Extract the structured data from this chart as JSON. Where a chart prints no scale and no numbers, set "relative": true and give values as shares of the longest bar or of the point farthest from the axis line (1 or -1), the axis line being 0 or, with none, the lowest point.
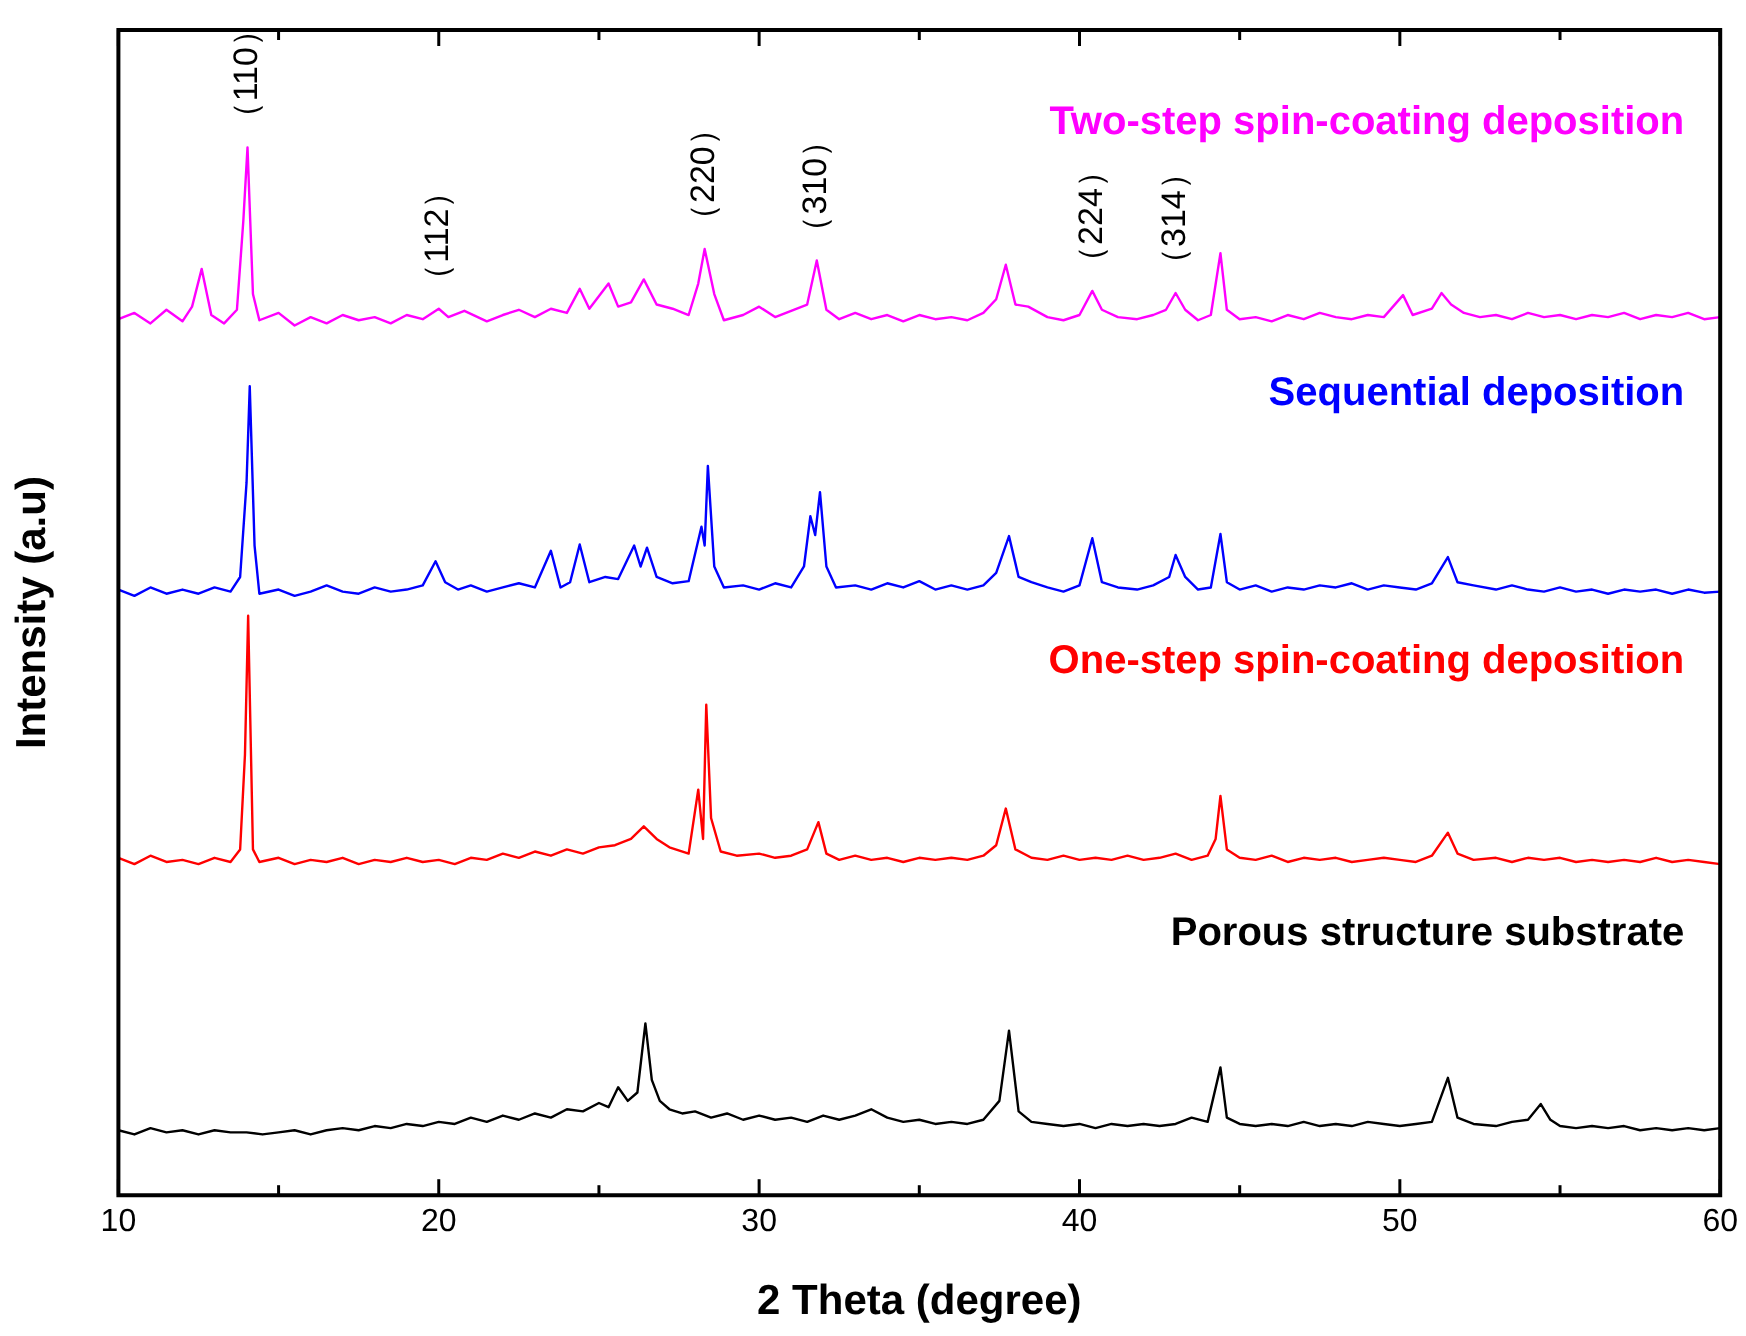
{
  "chart_data": {
    "type": "line",
    "relative": true,
    "xlabel": "2 Theta (degree)",
    "ylabel": "Intensity (a.u)",
    "xlim": [
      10,
      60
    ],
    "xticks": [
      10,
      {
        "value": 15,
        "label": null
      },
      20,
      {
        "value": 25,
        "label": null
      },
      30,
      {
        "value": 35,
        "label": null
      },
      40,
      {
        "value": 45,
        "label": null
      },
      50,
      {
        "value": 55,
        "label": null
      },
      60
    ],
    "grid": false,
    "legend": false,
    "series": [
      {
        "name": "Two-step spin-coating deposition",
        "color": "#ff00ff",
        "x": [
          10,
          10.5,
          11,
          11.5,
          12,
          12.3,
          12.6,
          12.9,
          13.3,
          13.7,
          13.9,
          14.03,
          14.2,
          14.4,
          15,
          15.5,
          16,
          16.5,
          17,
          17.5,
          18,
          18.5,
          19,
          19.5,
          20,
          20.3,
          20.8,
          21.5,
          22,
          22.5,
          23,
          23.5,
          24,
          24.4,
          24.7,
          25.3,
          25.6,
          26,
          26.4,
          26.8,
          27.3,
          27.8,
          28.1,
          28.3,
          28.6,
          28.9,
          29.5,
          30,
          30.5,
          31,
          31.5,
          31.8,
          32.1,
          32.5,
          33,
          33.5,
          34,
          34.5,
          35,
          35.5,
          36,
          36.5,
          37,
          37.4,
          37.7,
          38,
          38.4,
          39,
          39.5,
          40,
          40.4,
          40.7,
          41.2,
          41.8,
          42.3,
          42.7,
          43,
          43.3,
          43.7,
          44.1,
          44.4,
          44.6,
          45,
          45.5,
          46,
          46.5,
          47,
          47.5,
          48,
          48.5,
          49,
          49.5,
          50.1,
          50.4,
          51,
          51.3,
          51.6,
          52,
          52.5,
          53,
          53.5,
          54,
          54.5,
          55,
          55.5,
          56,
          56.5,
          57,
          57.5,
          58,
          58.5,
          59,
          59.5,
          60
        ],
        "values": [
          0.836,
          0.842,
          0.832,
          0.845,
          0.834,
          0.848,
          0.884,
          0.84,
          0.832,
          0.845,
          0.93,
          1.0,
          0.86,
          0.835,
          0.842,
          0.83,
          0.838,
          0.832,
          0.84,
          0.835,
          0.838,
          0.832,
          0.84,
          0.836,
          0.846,
          0.838,
          0.844,
          0.834,
          0.84,
          0.845,
          0.838,
          0.846,
          0.842,
          0.865,
          0.846,
          0.87,
          0.848,
          0.852,
          0.874,
          0.85,
          0.846,
          0.84,
          0.87,
          0.903,
          0.86,
          0.835,
          0.84,
          0.848,
          0.838,
          0.844,
          0.85,
          0.892,
          0.845,
          0.836,
          0.842,
          0.836,
          0.84,
          0.834,
          0.84,
          0.836,
          0.838,
          0.835,
          0.842,
          0.855,
          0.888,
          0.85,
          0.848,
          0.838,
          0.835,
          0.84,
          0.863,
          0.845,
          0.838,
          0.836,
          0.84,
          0.845,
          0.861,
          0.845,
          0.835,
          0.84,
          0.899,
          0.845,
          0.836,
          0.838,
          0.834,
          0.84,
          0.836,
          0.842,
          0.838,
          0.836,
          0.84,
          0.838,
          0.859,
          0.84,
          0.846,
          0.861,
          0.85,
          0.842,
          0.838,
          0.84,
          0.836,
          0.842,
          0.838,
          0.84,
          0.836,
          0.84,
          0.838,
          0.842,
          0.836,
          0.84,
          0.838,
          0.842,
          0.836,
          0.838
        ]
      },
      {
        "name": "Sequential deposition",
        "color": "#0000ff",
        "x": [
          10,
          10.5,
          11,
          11.5,
          12,
          12.5,
          13,
          13.5,
          13.8,
          14,
          14.1,
          14.25,
          14.4,
          15,
          15.5,
          16,
          16.5,
          17,
          17.5,
          18,
          18.5,
          19,
          19.5,
          19.9,
          20.2,
          20.6,
          21,
          21.5,
          22,
          22.5,
          23,
          23.5,
          23.8,
          24.1,
          24.4,
          24.7,
          25.2,
          25.6,
          26.1,
          26.3,
          26.5,
          26.8,
          27.3,
          27.8,
          28.2,
          28.3,
          28.4,
          28.6,
          28.9,
          29.5,
          30,
          30.5,
          31,
          31.4,
          31.6,
          31.75,
          31.9,
          32.1,
          32.4,
          33,
          33.5,
          34,
          34.5,
          35,
          35.5,
          36,
          36.5,
          37,
          37.4,
          37.8,
          38.1,
          38.5,
          39,
          39.5,
          40,
          40.4,
          40.7,
          41.2,
          41.8,
          42.3,
          42.8,
          43,
          43.3,
          43.7,
          44.1,
          44.4,
          44.6,
          45,
          45.5,
          46,
          46.5,
          47,
          47.5,
          48,
          48.5,
          49,
          49.5,
          50,
          50.5,
          51,
          51.5,
          51.8,
          52.3,
          53,
          53.5,
          54,
          54.5,
          55,
          55.5,
          56,
          56.5,
          57,
          57.5,
          58,
          58.5,
          59,
          59.5,
          60
        ],
        "values": [
          0.578,
          0.572,
          0.58,
          0.574,
          0.578,
          0.574,
          0.58,
          0.576,
          0.59,
          0.68,
          0.772,
          0.62,
          0.574,
          0.578,
          0.572,
          0.576,
          0.582,
          0.576,
          0.574,
          0.58,
          0.576,
          0.578,
          0.582,
          0.605,
          0.585,
          0.578,
          0.582,
          0.576,
          0.58,
          0.584,
          0.58,
          0.615,
          0.58,
          0.585,
          0.621,
          0.585,
          0.59,
          0.588,
          0.62,
          0.6,
          0.618,
          0.59,
          0.584,
          0.586,
          0.638,
          0.62,
          0.696,
          0.6,
          0.58,
          0.582,
          0.578,
          0.584,
          0.58,
          0.6,
          0.648,
          0.63,
          0.671,
          0.6,
          0.58,
          0.582,
          0.578,
          0.584,
          0.58,
          0.586,
          0.578,
          0.582,
          0.578,
          0.582,
          0.594,
          0.629,
          0.59,
          0.585,
          0.58,
          0.576,
          0.582,
          0.627,
          0.585,
          0.58,
          0.578,
          0.582,
          0.59,
          0.611,
          0.59,
          0.578,
          0.58,
          0.631,
          0.585,
          0.578,
          0.582,
          0.576,
          0.58,
          0.578,
          0.582,
          0.58,
          0.584,
          0.578,
          0.582,
          0.58,
          0.578,
          0.584,
          0.609,
          0.585,
          0.582,
          0.578,
          0.582,
          0.578,
          0.576,
          0.58,
          0.576,
          0.578,
          0.574,
          0.578,
          0.576,
          0.578,
          0.574,
          0.578,
          0.575,
          0.576
        ]
      },
      {
        "name": "One-step spin-coating deposition",
        "color": "#ff0000",
        "x": [
          10,
          10.5,
          11,
          11.5,
          12,
          12.5,
          13,
          13.5,
          13.8,
          13.95,
          14.05,
          14.2,
          14.4,
          15,
          15.5,
          16,
          16.5,
          17,
          17.5,
          18,
          18.5,
          19,
          19.5,
          20,
          20.5,
          21,
          21.5,
          22,
          22.5,
          23,
          23.5,
          24,
          24.5,
          25,
          25.5,
          26,
          26.4,
          26.8,
          27.2,
          27.8,
          28.1,
          28.25,
          28.35,
          28.5,
          28.8,
          29.3,
          30,
          30.5,
          31,
          31.5,
          31.85,
          32.1,
          32.5,
          33,
          33.5,
          34,
          34.5,
          35,
          35.5,
          36,
          36.5,
          37,
          37.4,
          37.7,
          38,
          38.5,
          39,
          39.5,
          40,
          40.5,
          41,
          41.5,
          42,
          42.5,
          43,
          43.5,
          44,
          44.25,
          44.4,
          44.6,
          45,
          45.5,
          46,
          46.5,
          47,
          47.5,
          48,
          48.5,
          49,
          49.5,
          50,
          50.5,
          51,
          51.5,
          51.8,
          52.3,
          53,
          53.5,
          54,
          54.5,
          55,
          55.5,
          56,
          56.5,
          57,
          57.5,
          58,
          58.5,
          59,
          59.5,
          60
        ],
        "values": [
          0.322,
          0.316,
          0.324,
          0.318,
          0.32,
          0.316,
          0.322,
          0.318,
          0.33,
          0.42,
          0.553,
          0.33,
          0.318,
          0.322,
          0.316,
          0.32,
          0.318,
          0.322,
          0.316,
          0.32,
          0.318,
          0.322,
          0.318,
          0.32,
          0.316,
          0.322,
          0.32,
          0.326,
          0.322,
          0.328,
          0.324,
          0.33,
          0.326,
          0.332,
          0.334,
          0.34,
          0.352,
          0.34,
          0.332,
          0.326,
          0.387,
          0.34,
          0.468,
          0.36,
          0.328,
          0.324,
          0.326,
          0.322,
          0.324,
          0.33,
          0.356,
          0.326,
          0.32,
          0.324,
          0.32,
          0.322,
          0.318,
          0.322,
          0.32,
          0.322,
          0.32,
          0.324,
          0.334,
          0.369,
          0.33,
          0.322,
          0.32,
          0.324,
          0.32,
          0.322,
          0.32,
          0.324,
          0.32,
          0.322,
          0.326,
          0.32,
          0.324,
          0.34,
          0.381,
          0.33,
          0.322,
          0.32,
          0.324,
          0.318,
          0.322,
          0.32,
          0.322,
          0.318,
          0.32,
          0.322,
          0.32,
          0.318,
          0.324,
          0.346,
          0.326,
          0.32,
          0.322,
          0.318,
          0.322,
          0.32,
          0.322,
          0.318,
          0.32,
          0.318,
          0.32,
          0.318,
          0.322,
          0.318,
          0.32,
          0.318,
          0.316
        ]
      },
      {
        "name": "Porous structure substrate",
        "color": "#000000",
        "x": [
          10,
          10.5,
          11,
          11.5,
          12,
          12.5,
          13,
          13.5,
          14,
          14.5,
          15,
          15.5,
          16,
          16.5,
          17,
          17.5,
          18,
          18.5,
          19,
          19.5,
          20,
          20.5,
          21,
          21.5,
          22,
          22.5,
          23,
          23.5,
          24,
          24.5,
          25,
          25.3,
          25.6,
          25.9,
          26.2,
          26.45,
          26.65,
          26.9,
          27.2,
          27.6,
          28,
          28.5,
          29,
          29.5,
          30,
          30.5,
          31,
          31.5,
          32,
          32.5,
          33,
          33.5,
          34,
          34.5,
          35,
          35.5,
          36,
          36.5,
          37,
          37.5,
          37.8,
          38.1,
          38.5,
          39,
          39.5,
          40,
          40.5,
          41,
          41.5,
          42,
          42.5,
          43,
          43.5,
          44,
          44.4,
          44.6,
          45,
          45.5,
          46,
          46.5,
          47,
          47.5,
          48,
          48.5,
          49,
          49.5,
          50,
          50.5,
          51,
          51.5,
          51.8,
          52.3,
          53,
          53.5,
          54,
          54.4,
          54.7,
          55,
          55.5,
          56,
          56.5,
          57,
          57.5,
          58,
          58.5,
          59,
          59.5,
          60
        ],
        "values": [
          0.062,
          0.058,
          0.064,
          0.06,
          0.062,
          0.058,
          0.062,
          0.06,
          0.06,
          0.058,
          0.06,
          0.062,
          0.058,
          0.062,
          0.064,
          0.062,
          0.066,
          0.064,
          0.068,
          0.066,
          0.07,
          0.068,
          0.074,
          0.07,
          0.076,
          0.072,
          0.078,
          0.074,
          0.082,
          0.08,
          0.088,
          0.084,
          0.103,
          0.09,
          0.098,
          0.164,
          0.11,
          0.09,
          0.082,
          0.078,
          0.08,
          0.074,
          0.078,
          0.072,
          0.076,
          0.072,
          0.074,
          0.07,
          0.076,
          0.072,
          0.076,
          0.082,
          0.074,
          0.07,
          0.072,
          0.068,
          0.07,
          0.068,
          0.072,
          0.09,
          0.157,
          0.08,
          0.07,
          0.068,
          0.066,
          0.068,
          0.064,
          0.068,
          0.066,
          0.068,
          0.066,
          0.068,
          0.074,
          0.07,
          0.122,
          0.074,
          0.068,
          0.066,
          0.068,
          0.066,
          0.07,
          0.066,
          0.068,
          0.066,
          0.07,
          0.068,
          0.066,
          0.068,
          0.07,
          0.112,
          0.074,
          0.068,
          0.066,
          0.07,
          0.072,
          0.087,
          0.072,
          0.066,
          0.064,
          0.066,
          0.064,
          0.066,
          0.062,
          0.064,
          0.062,
          0.064,
          0.062,
          0.064
        ]
      }
    ],
    "annotations": [
      {
        "text": "（110）",
        "x": 14.03,
        "y": 1.0
      },
      {
        "text": "（112）",
        "x": 20,
        "y": 0.846
      },
      {
        "text": "（220）",
        "x": 28.3,
        "y": 0.903
      },
      {
        "text": "（310）",
        "x": 31.8,
        "y": 0.892
      },
      {
        "text": "（224）",
        "x": 40.4,
        "y": 0.863
      },
      {
        "text": "（314）",
        "x": 43,
        "y": 0.861
      }
    ]
  }
}
